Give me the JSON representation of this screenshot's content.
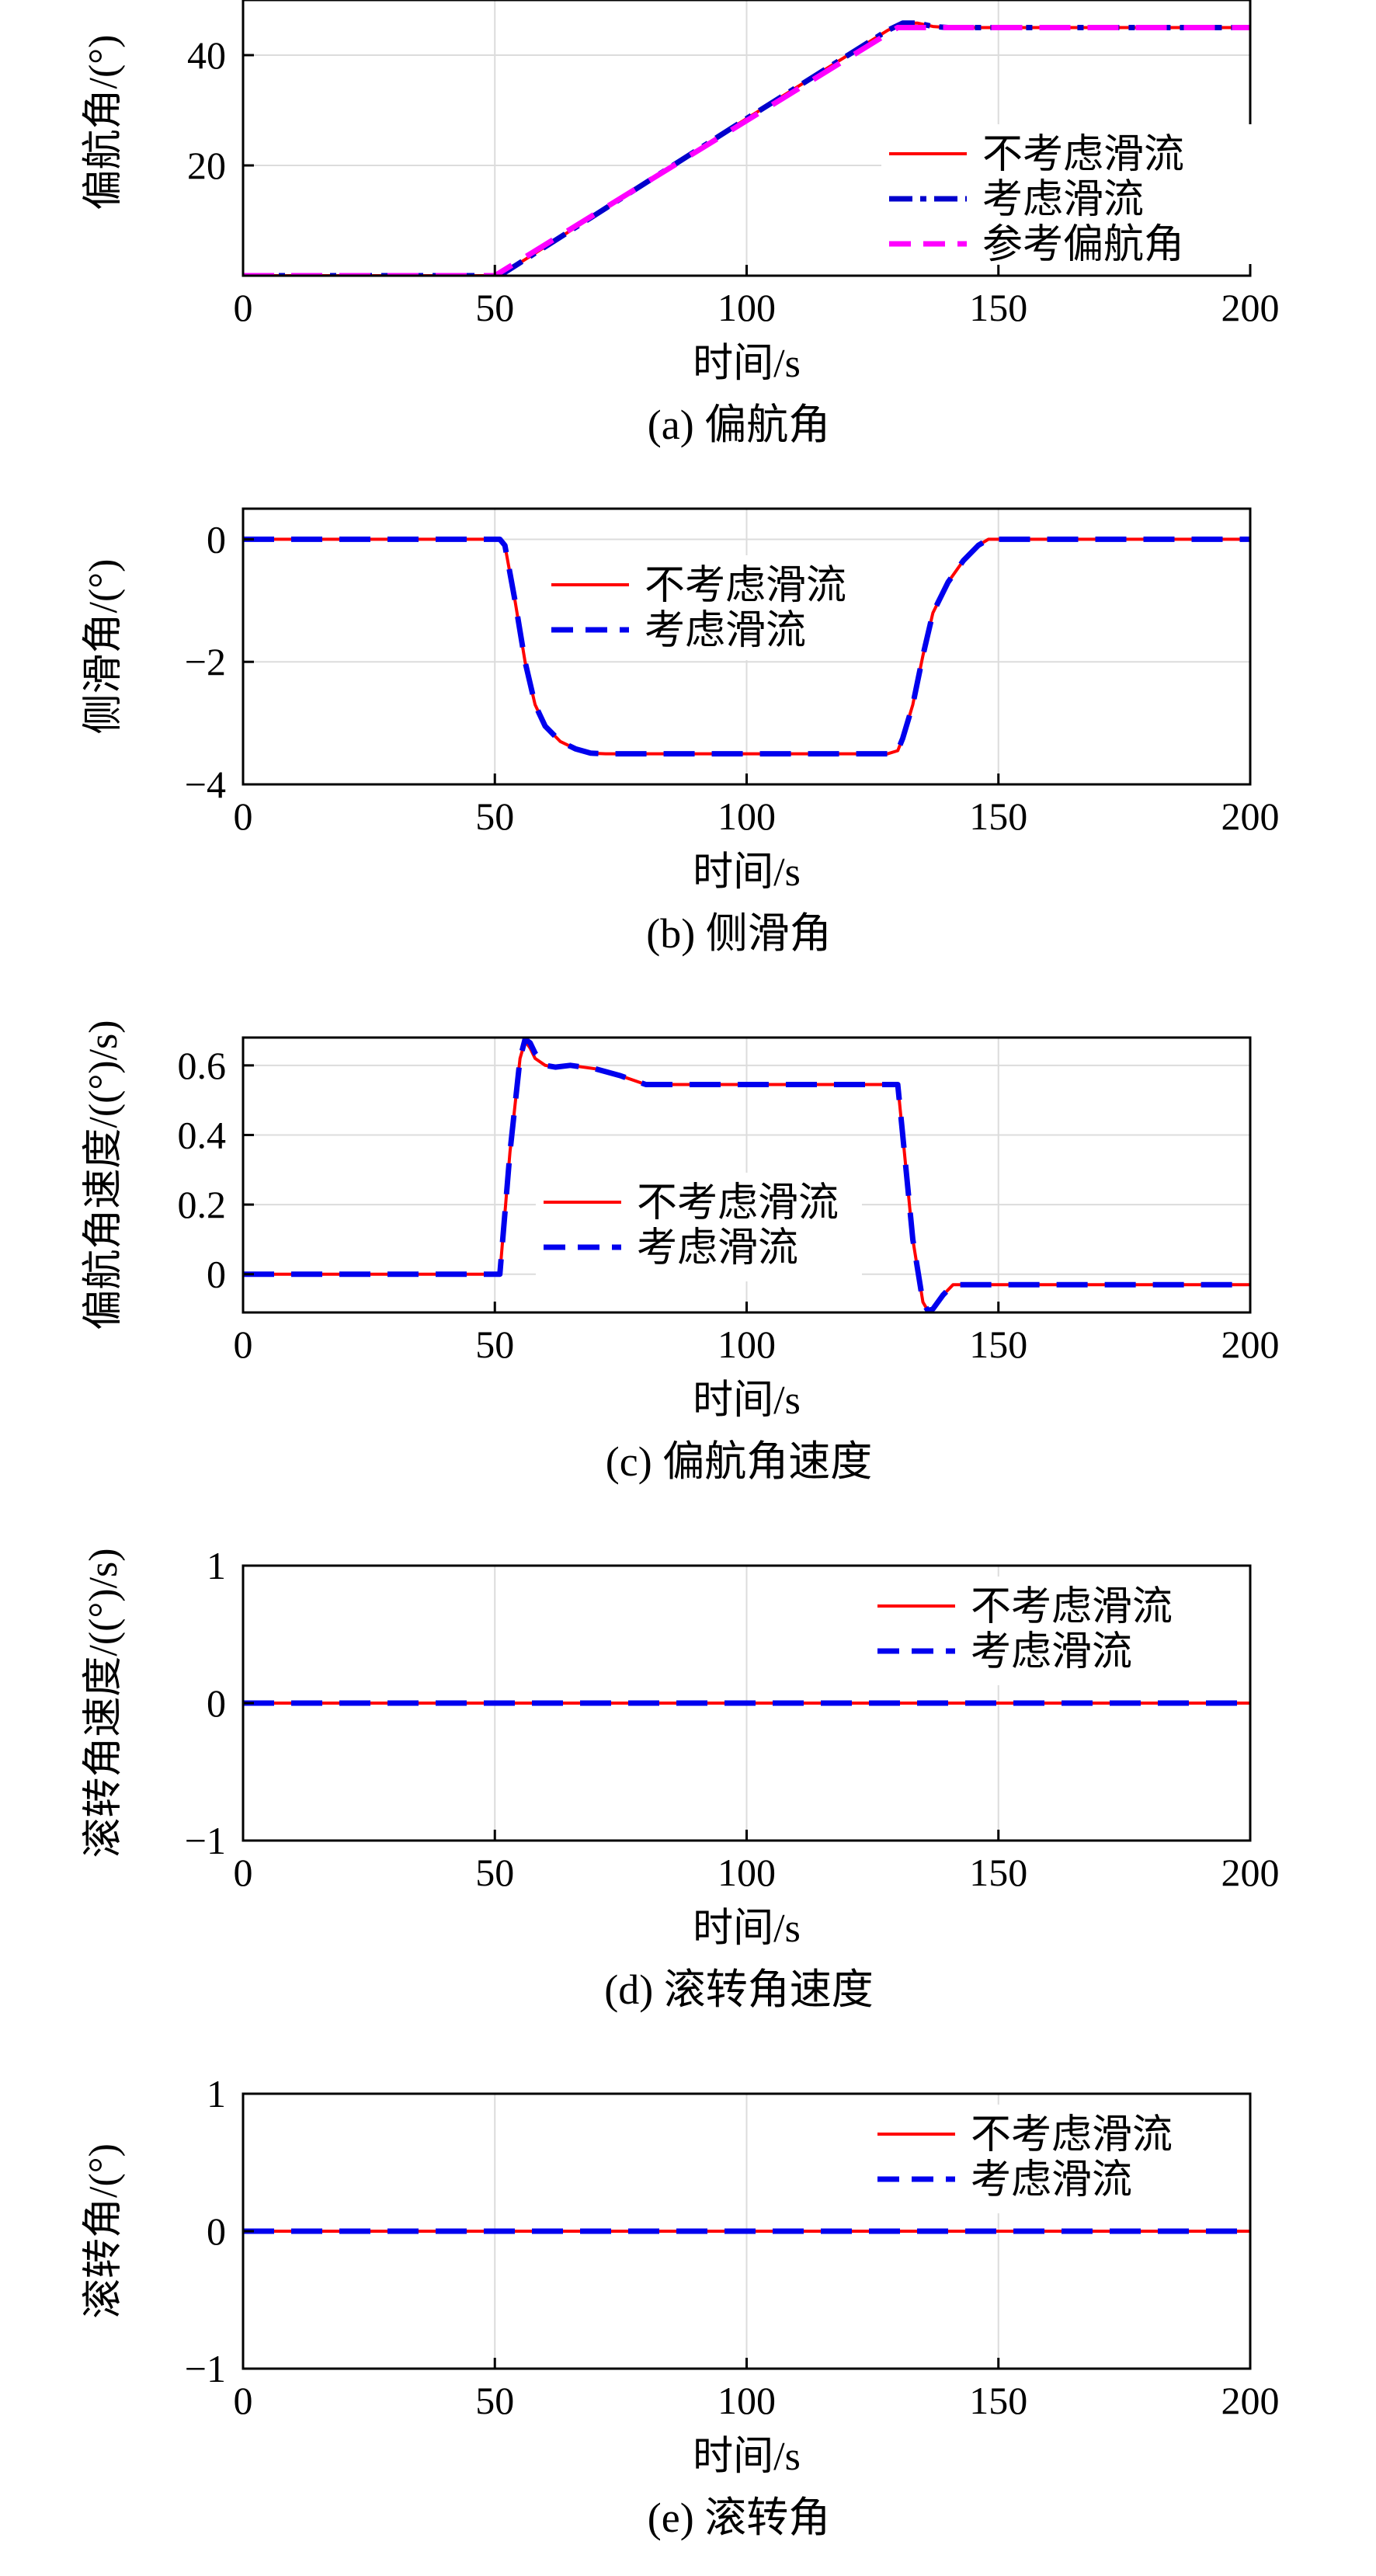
{
  "chart_data": [
    {
      "type": "line",
      "caption": "(a) 偏航角",
      "xlabel": "时间/s",
      "ylabel": "偏航角/(°)",
      "xlim": [
        0,
        200
      ],
      "ylim": [
        0,
        50
      ],
      "xticks": [
        0,
        50,
        100,
        150,
        200
      ],
      "yticks": [
        20,
        40
      ],
      "grid": true,
      "legend": "right",
      "series": [
        {
          "name": "不考虑滑流",
          "color": "#ff0000",
          "style": "solid",
          "x": [
            0,
            50,
            52,
            100,
            128,
            131,
            134,
            137,
            140,
            145,
            150,
            200
          ],
          "y": [
            0,
            0,
            0.6,
            28.5,
            44.5,
            45.8,
            45.8,
            45.2,
            45.0,
            45.0,
            45.0,
            45.0
          ]
        },
        {
          "name": "考虑滑流",
          "color": "#0000cc",
          "style": "dashdot",
          "x": [
            0,
            50,
            52,
            100,
            128,
            131,
            134,
            137,
            140,
            145,
            150,
            200
          ],
          "y": [
            0,
            0,
            0.6,
            28.5,
            44.5,
            45.8,
            45.8,
            45.2,
            45.0,
            45.0,
            45.0,
            45.0
          ]
        },
        {
          "name": "参考偏航角",
          "color": "#ff00ff",
          "style": "dashed",
          "x": [
            0,
            50,
            130,
            200
          ],
          "y": [
            0,
            0,
            45,
            45
          ]
        }
      ]
    },
    {
      "type": "line",
      "caption": "(b) 侧滑角",
      "xlabel": "时间/s",
      "ylabel": "侧滑角/(°)",
      "xlim": [
        0,
        200
      ],
      "ylim": [
        -4,
        0.5
      ],
      "xticks": [
        0,
        50,
        100,
        150,
        200
      ],
      "yticks": [
        -4,
        -2,
        0
      ],
      "ytick_labels": [
        "−4",
        "−2",
        "0"
      ],
      "grid": true,
      "legend": "top-left",
      "series": [
        {
          "name": "不考虑滑流",
          "color": "#ff0000",
          "style": "solid",
          "x": [
            0,
            51,
            52,
            54,
            56,
            58,
            60,
            63,
            66,
            69,
            72,
            128,
            130,
            131,
            133,
            135,
            137,
            140,
            143,
            146,
            148,
            150,
            200
          ],
          "y": [
            0,
            0,
            -0.1,
            -1.0,
            -2.0,
            -2.7,
            -3.05,
            -3.3,
            -3.42,
            -3.49,
            -3.5,
            -3.5,
            -3.45,
            -3.25,
            -2.7,
            -1.9,
            -1.2,
            -0.7,
            -0.35,
            -0.1,
            0,
            0,
            0
          ]
        },
        {
          "name": "考虑滑流",
          "color": "#0000ee",
          "style": "dashed",
          "x": [
            0,
            51,
            52,
            54,
            56,
            58,
            60,
            63,
            66,
            69,
            72,
            128,
            130,
            131,
            133,
            135,
            137,
            140,
            143,
            146,
            148,
            150,
            200
          ],
          "y": [
            0,
            0,
            -0.1,
            -1.0,
            -2.0,
            -2.7,
            -3.05,
            -3.3,
            -3.42,
            -3.49,
            -3.5,
            -3.5,
            -3.45,
            -3.25,
            -2.7,
            -1.9,
            -1.2,
            -0.7,
            -0.35,
            -0.1,
            0,
            0,
            0
          ]
        }
      ]
    },
    {
      "type": "line",
      "caption": "(c) 偏航角速度",
      "xlabel": "时间/s",
      "ylabel": "偏航角速度/((°)/s)",
      "xlim": [
        0,
        200
      ],
      "ylim": [
        -0.11,
        0.68
      ],
      "xticks": [
        0,
        50,
        100,
        150,
        200
      ],
      "yticks": [
        0,
        0.2,
        0.4,
        0.6
      ],
      "ytick_labels": [
        "0",
        "0.2",
        "0.4",
        "0.6"
      ],
      "grid": true,
      "legend": "center",
      "series": [
        {
          "name": "不考虑滑流",
          "color": "#ff0000",
          "style": "solid",
          "x": [
            0,
            51,
            53,
            55,
            56,
            57,
            58,
            60,
            62,
            65,
            70,
            75,
            80,
            85,
            90,
            100,
            110,
            120,
            130,
            131,
            133,
            135,
            136,
            137,
            139,
            141,
            143,
            150,
            200
          ],
          "y": [
            0,
            0,
            0.35,
            0.62,
            0.67,
            0.65,
            0.62,
            0.6,
            0.595,
            0.6,
            0.59,
            0.57,
            0.545,
            0.545,
            0.545,
            0.545,
            0.545,
            0.545,
            0.545,
            0.4,
            0.1,
            -0.08,
            -0.105,
            -0.1,
            -0.06,
            -0.03,
            -0.03,
            -0.03,
            -0.03
          ]
        },
        {
          "name": "考虑滑流",
          "color": "#0000ee",
          "style": "dashed",
          "x": [
            0,
            51,
            53,
            55,
            56,
            57,
            58,
            60,
            62,
            65,
            70,
            75,
            80,
            85,
            90,
            100,
            110,
            120,
            130,
            131,
            133,
            135,
            136,
            137,
            139,
            141,
            143,
            150,
            200
          ],
          "y": [
            0,
            0,
            0.35,
            0.62,
            0.675,
            0.665,
            0.635,
            0.6,
            0.595,
            0.6,
            0.59,
            0.57,
            0.545,
            0.545,
            0.545,
            0.545,
            0.545,
            0.545,
            0.545,
            0.4,
            0.1,
            -0.08,
            -0.105,
            -0.1,
            -0.06,
            -0.03,
            -0.03,
            -0.03,
            -0.03
          ]
        }
      ]
    },
    {
      "type": "line",
      "caption": "(d) 滚转角速度",
      "xlabel": "时间/s",
      "ylabel": "滚转角速度/((°)/s)",
      "xlim": [
        0,
        200
      ],
      "ylim": [
        -1,
        1
      ],
      "xticks": [
        0,
        50,
        100,
        150,
        200
      ],
      "yticks": [
        -1,
        0,
        1
      ],
      "ytick_labels": [
        "−1",
        "0",
        "1"
      ],
      "grid": true,
      "legend": "top-right",
      "series": [
        {
          "name": "不考虑滑流",
          "color": "#ff0000",
          "style": "solid",
          "x": [
            0,
            200
          ],
          "y": [
            0,
            0
          ]
        },
        {
          "name": "考虑滑流",
          "color": "#0000ee",
          "style": "dashed",
          "x": [
            0,
            200
          ],
          "y": [
            0,
            0
          ]
        }
      ]
    },
    {
      "type": "line",
      "caption": "(e) 滚转角",
      "xlabel": "时间/s",
      "ylabel": "滚转角/(°)",
      "xlim": [
        0,
        200
      ],
      "ylim": [
        -1,
        1
      ],
      "xticks": [
        0,
        50,
        100,
        150,
        200
      ],
      "yticks": [
        -1,
        0,
        1
      ],
      "ytick_labels": [
        "−1",
        "0",
        "1"
      ],
      "grid": true,
      "legend": "top-right",
      "series": [
        {
          "name": "不考虑滑流",
          "color": "#ff0000",
          "style": "solid",
          "x": [
            0,
            200
          ],
          "y": [
            0,
            0
          ]
        },
        {
          "name": "考虑滑流",
          "color": "#0000ee",
          "style": "dashed",
          "x": [
            0,
            200
          ],
          "y": [
            0,
            0
          ]
        }
      ]
    }
  ]
}
